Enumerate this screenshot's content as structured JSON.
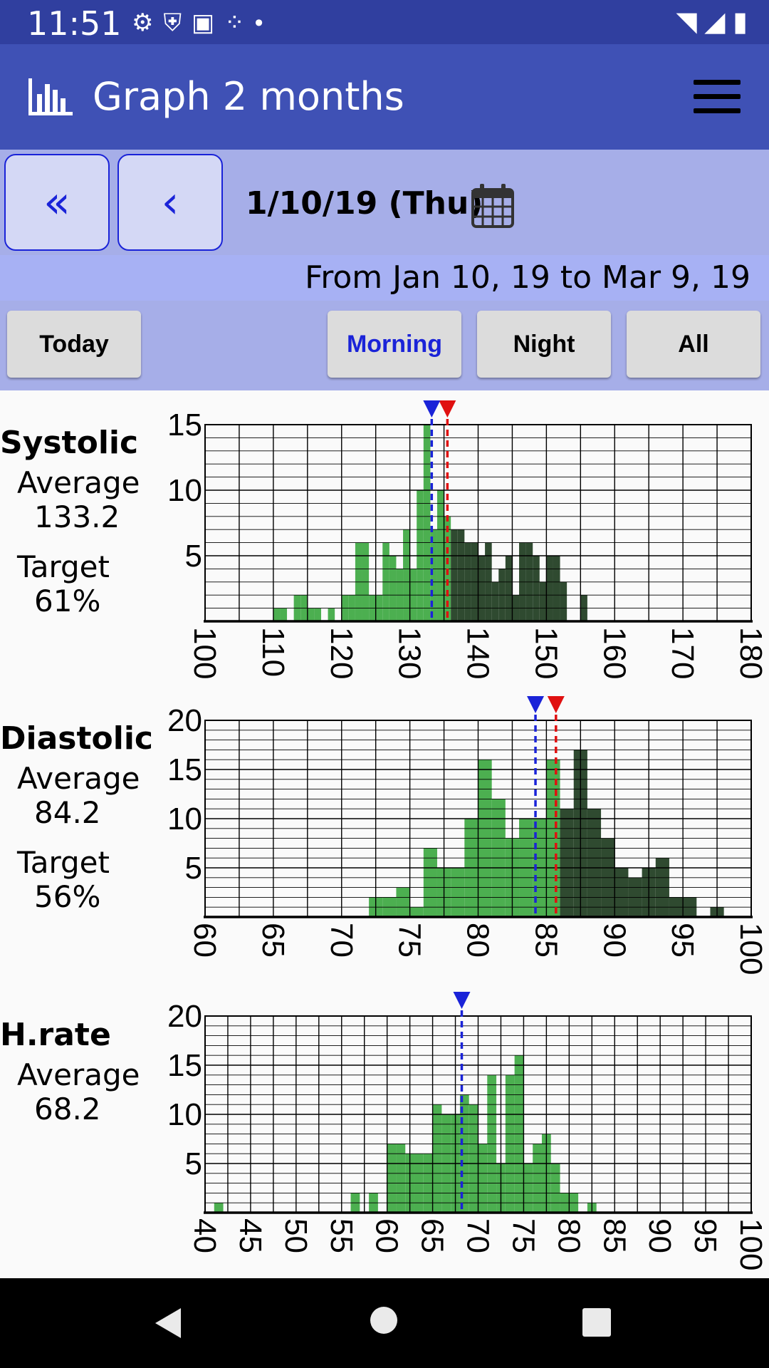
{
  "status_bar": {
    "time": "11:51",
    "icons": [
      "gear-icon",
      "shield-icon",
      "a-box-icon",
      "dots-icon",
      "dot-icon"
    ],
    "right_icons": [
      "wifi-icon",
      "signal-icon",
      "battery-icon"
    ]
  },
  "app_bar": {
    "title": "Graph 2 months",
    "icon": "bar-chart-icon",
    "menu_icon": "hamburger-menu-icon"
  },
  "nav": {
    "first_label": "«",
    "prev_label": "‹",
    "date": "1/10/19 (Thu)",
    "calendar_icon": "calendar-icon"
  },
  "range": "From Jan 10, 19 to Mar 9, 19",
  "filters": {
    "today": "Today",
    "morning": "Morning",
    "night": "Night",
    "all": "All",
    "active": "morning"
  },
  "colors": {
    "in_target": "#4caf50",
    "over_target": "#2f4a30",
    "average_marker": "#1a23d8",
    "target_marker": "#e01010"
  },
  "stats": {
    "systolic": {
      "name": "Systolic",
      "avg_label": "Average",
      "avg_value": "133.2",
      "target_label": "Target",
      "target_value": "61%"
    },
    "diastolic": {
      "name": "Diastolic",
      "avg_label": "Average",
      "avg_value": "84.2",
      "target_label": "Target",
      "target_value": "56%"
    },
    "hrate": {
      "name": "H.rate",
      "avg_label": "Average",
      "avg_value": "68.2"
    }
  },
  "chart_data": [
    {
      "type": "bar",
      "id": "systolic",
      "xlim": [
        100,
        180
      ],
      "ylim": [
        0,
        15
      ],
      "x_ticks": [
        100,
        110,
        120,
        130,
        140,
        150,
        160,
        170,
        180
      ],
      "y_ticks": [
        5,
        10,
        15
      ],
      "bin_width": 1,
      "average": 133.2,
      "target": 135.5,
      "bins": [
        [
          110,
          1
        ],
        [
          111,
          1
        ],
        [
          113,
          2
        ],
        [
          114,
          2
        ],
        [
          115,
          1
        ],
        [
          116,
          1
        ],
        [
          118,
          1
        ],
        [
          120,
          2
        ],
        [
          121,
          2
        ],
        [
          122,
          6
        ],
        [
          123,
          6
        ],
        [
          124,
          2
        ],
        [
          125,
          2
        ],
        [
          126,
          6
        ],
        [
          127,
          5
        ],
        [
          128,
          4
        ],
        [
          129,
          7
        ],
        [
          130,
          4
        ],
        [
          131,
          10
        ],
        [
          132,
          15
        ],
        [
          133,
          7
        ],
        [
          134,
          10
        ],
        [
          135,
          8
        ],
        [
          136,
          7
        ],
        [
          137,
          7
        ],
        [
          138,
          6
        ],
        [
          139,
          6
        ],
        [
          140,
          5
        ],
        [
          141,
          6
        ],
        [
          142,
          3
        ],
        [
          143,
          4
        ],
        [
          144,
          5
        ],
        [
          145,
          2
        ],
        [
          146,
          6
        ],
        [
          147,
          6
        ],
        [
          148,
          5
        ],
        [
          149,
          3
        ],
        [
          150,
          5
        ],
        [
          151,
          5
        ],
        [
          152,
          3
        ],
        [
          155,
          2
        ]
      ],
      "target_threshold": 135.5
    },
    {
      "type": "bar",
      "id": "diastolic",
      "xlim": [
        60,
        100
      ],
      "ylim": [
        0,
        20
      ],
      "x_ticks": [
        60,
        65,
        70,
        75,
        80,
        85,
        90,
        95,
        100
      ],
      "y_ticks": [
        5,
        10,
        15,
        20
      ],
      "bin_width": 1,
      "average": 84.2,
      "target": 85.7,
      "bins": [
        [
          72,
          2
        ],
        [
          73,
          2
        ],
        [
          74,
          3
        ],
        [
          75,
          1
        ],
        [
          76,
          7
        ],
        [
          77,
          5
        ],
        [
          78,
          5
        ],
        [
          79,
          10
        ],
        [
          80,
          16
        ],
        [
          81,
          12
        ],
        [
          82,
          8
        ],
        [
          83,
          10
        ],
        [
          84,
          10
        ],
        [
          85,
          16
        ],
        [
          86,
          11
        ],
        [
          87,
          17
        ],
        [
          88,
          11
        ],
        [
          89,
          8
        ],
        [
          90,
          5
        ],
        [
          91,
          4
        ],
        [
          92,
          5
        ],
        [
          93,
          6
        ],
        [
          94,
          2
        ],
        [
          95,
          2
        ],
        [
          97,
          1
        ]
      ],
      "target_threshold": 85.7
    },
    {
      "type": "bar",
      "id": "hrate",
      "xlim": [
        40,
        100
      ],
      "ylim": [
        0,
        20
      ],
      "x_ticks": [
        40,
        45,
        50,
        55,
        60,
        65,
        70,
        75,
        80,
        85,
        90,
        95,
        100
      ],
      "y_ticks": [
        5,
        10,
        15,
        20
      ],
      "bin_width": 1,
      "average": 68.2,
      "bins": [
        [
          41,
          1
        ],
        [
          56,
          2
        ],
        [
          58,
          2
        ],
        [
          60,
          7
        ],
        [
          61,
          7
        ],
        [
          62,
          6
        ],
        [
          63,
          6
        ],
        [
          64,
          6
        ],
        [
          65,
          11
        ],
        [
          66,
          10
        ],
        [
          67,
          10
        ],
        [
          68,
          12
        ],
        [
          69,
          11
        ],
        [
          70,
          7
        ],
        [
          71,
          14
        ],
        [
          72,
          5
        ],
        [
          73,
          14
        ],
        [
          74,
          16
        ],
        [
          75,
          5
        ],
        [
          76,
          7
        ],
        [
          77,
          8
        ],
        [
          78,
          5
        ],
        [
          79,
          2
        ],
        [
          80,
          2
        ],
        [
          82,
          1
        ]
      ]
    }
  ]
}
